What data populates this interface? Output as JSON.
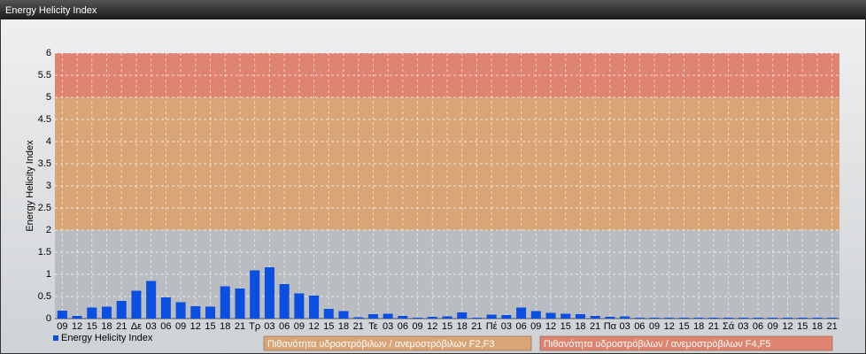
{
  "window_title": "Energy Helicity Index",
  "chart_data": {
    "type": "bar",
    "ylabel": "Energy Helicity Index",
    "categories": [
      "09",
      "12",
      "15",
      "18",
      "21",
      "Δε",
      "03",
      "06",
      "09",
      "12",
      "15",
      "18",
      "21",
      "Τρ",
      "03",
      "06",
      "09",
      "12",
      "15",
      "18",
      "21",
      "Τε",
      "03",
      "06",
      "09",
      "12",
      "15",
      "18",
      "21",
      "Πέ",
      "03",
      "06",
      "09",
      "12",
      "15",
      "18",
      "21",
      "Πα",
      "03",
      "06",
      "09",
      "12",
      "15",
      "18",
      "21",
      "Σά",
      "03",
      "06",
      "09",
      "12",
      "15",
      "18",
      "21"
    ],
    "series": [
      {
        "name": "Energy Helicity Index",
        "color": "#0b4fe0",
        "values": [
          0.18,
          0.06,
          0.25,
          0.27,
          0.4,
          0.63,
          0.85,
          0.48,
          0.37,
          0.28,
          0.27,
          0.73,
          0.68,
          1.09,
          1.16,
          0.78,
          0.57,
          0.52,
          0.22,
          0.17,
          0.03,
          0.1,
          0.11,
          0.06,
          0.02,
          0.04,
          0.05,
          0.14,
          0.02,
          0.09,
          0.08,
          0.25,
          0.17,
          0.13,
          0.11,
          0.1,
          0.06,
          0.04,
          0.05,
          0.02,
          0.02,
          0.02,
          0.02,
          0.02,
          0.02,
          0.02,
          0.02,
          0.02,
          0.02,
          0.02,
          0.02,
          0.02,
          0.02
        ]
      }
    ],
    "bands": [
      {
        "from": 0,
        "to": 2,
        "color": "#b9bcc0"
      },
      {
        "from": 2,
        "to": 5,
        "color": "#d9a577",
        "label": "Πιθανότητα υδροστρόβιλων / ανεμοστρόβιλων F2,F3"
      },
      {
        "from": 5,
        "to": 6,
        "color": "#de8470",
        "label": "Πιθανότητα υδροστρόβιλων / ανεμοστρόβιλων F4,F5"
      }
    ],
    "ylim": [
      0,
      6
    ],
    "yticks": [
      0,
      0.5,
      1,
      1.5,
      2,
      2.5,
      3,
      3.5,
      4,
      4.5,
      5,
      5.5,
      6
    ],
    "grid": true
  }
}
